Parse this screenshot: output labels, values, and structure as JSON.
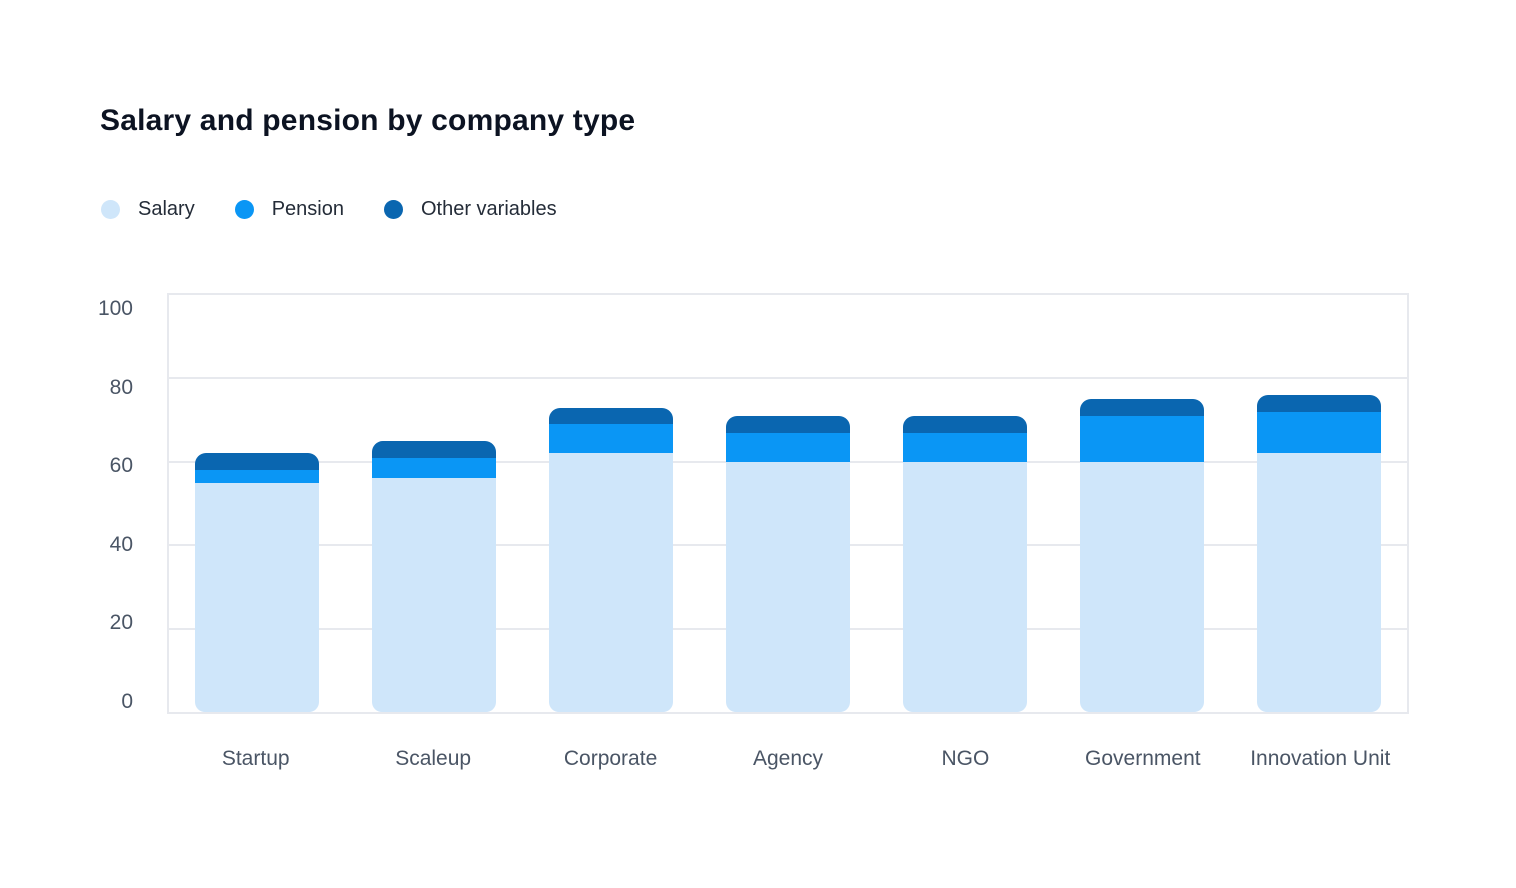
{
  "title": "Salary and pension by company type",
  "colors": {
    "salary": "#cfe6fa",
    "pension": "#0a96f5",
    "other_variables": "#0a66b0",
    "gridline": "#e7e9ee",
    "axis_text": "#4a5565",
    "legend_text": "#242c38",
    "title_text": "#0c1322",
    "background": "#ffffff"
  },
  "chart_data": {
    "type": "bar",
    "stacked": true,
    "title": "Salary and pension by company type",
    "categories": [
      "Startup",
      "Scaleup",
      "Corporate",
      "Agency",
      "NGO",
      "Government",
      "Innovation Unit"
    ],
    "series": [
      {
        "name": "Salary",
        "color": "#cfe6fa",
        "values": [
          55,
          56,
          62,
          60,
          60,
          60,
          62
        ]
      },
      {
        "name": "Pension",
        "color": "#0a96f5",
        "values": [
          3,
          5,
          7,
          7,
          7,
          11,
          10
        ]
      },
      {
        "name": "Other variables",
        "color": "#0a66b0",
        "values": [
          4,
          4,
          4,
          4,
          4,
          4,
          4
        ]
      }
    ],
    "totals": [
      62,
      65,
      73,
      71,
      71,
      75,
      76
    ],
    "xlabel": "",
    "ylabel": "",
    "ylim": [
      0,
      100
    ],
    "yticks": [
      0,
      20,
      40,
      60,
      80,
      100
    ],
    "grid": true,
    "legend_position": "top-left",
    "legend_entries": [
      "Salary",
      "Pension",
      "Other variables"
    ]
  }
}
